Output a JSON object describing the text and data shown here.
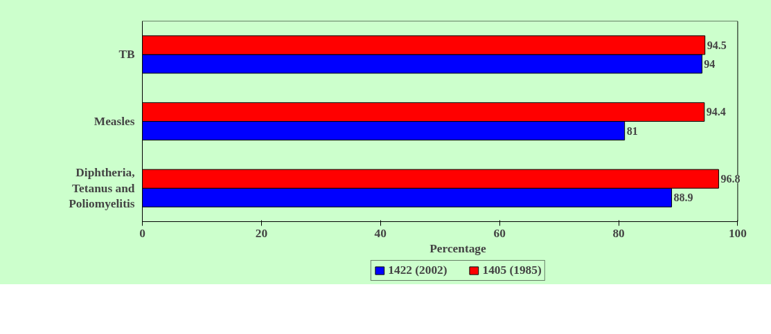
{
  "chart_data": {
    "type": "bar",
    "orientation": "horizontal",
    "xlabel": "Percentage",
    "categories": [
      "TB",
      "Measles",
      "Diphtheria, Tetanus and Poliomyelitis"
    ],
    "series": [
      {
        "name": "1422 (2002)",
        "color": "#0000ff",
        "values": [
          94,
          81,
          88.9
        ]
      },
      {
        "name": "1405 (1985)",
        "color": "#ff0000",
        "values": [
          94.5,
          94.4,
          96.8
        ]
      }
    ],
    "xlim": [
      0,
      100
    ],
    "xticks": [
      0,
      20,
      40,
      60,
      80,
      100
    ],
    "data_labels": true,
    "grid": false,
    "legend": "bottom"
  }
}
